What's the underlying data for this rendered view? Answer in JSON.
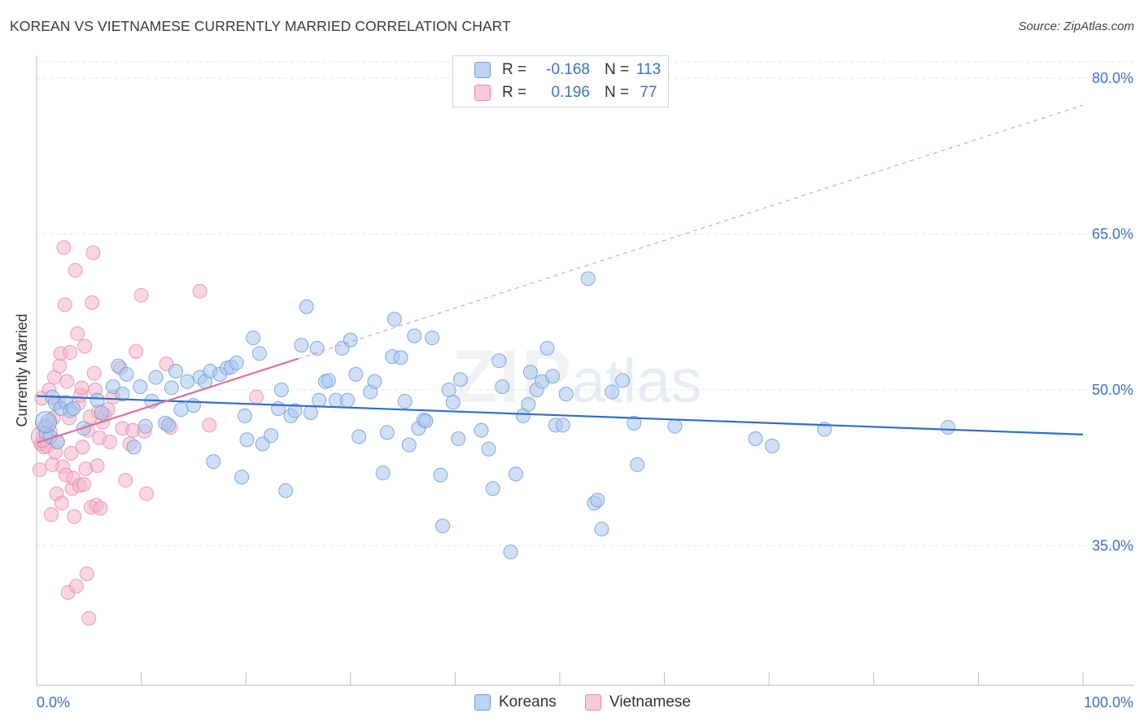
{
  "title": "KOREAN VS VIETNAMESE CURRENTLY MARRIED CORRELATION CHART",
  "source": "Source: ZipAtlas.com",
  "watermark": {
    "zip": "ZIP",
    "atlas": "atlas"
  },
  "legend": {
    "korean": {
      "r_label": "R =",
      "r_value": "-0.168",
      "n_label": "N =",
      "n_value": "113"
    },
    "vietnamese": {
      "r_label": "R =",
      "r_value": "0.196",
      "n_label": "N =",
      "n_value": "77"
    }
  },
  "bottom_legend": {
    "korean": "Koreans",
    "vietnamese": "Vietnamese"
  },
  "colors": {
    "korean_fill": "#a9c6ef",
    "korean_stroke": "#6f9ddb",
    "korean_line": "#2f6fc7",
    "viet_fill": "#f4b5c9",
    "viet_stroke": "#e88aa8",
    "viet_line": "#e0709a",
    "axis_text": "#3b73c4",
    "grid": "#e3e6ea"
  },
  "chart_data": {
    "type": "scatter",
    "title": "KOREAN VS VIETNAMESE CURRENTLY MARRIED CORRELATION CHART",
    "xlabel": "",
    "ylabel": "Currently Married",
    "xlim": [
      0,
      100
    ],
    "ylim": [
      20,
      82
    ],
    "x_tick_labels": [
      "0.0%",
      "100.0%"
    ],
    "y_ticks": [
      35,
      50,
      65,
      80
    ],
    "y_tick_labels": [
      "35.0%",
      "50.0%",
      "65.0%",
      "80.0%"
    ],
    "series": [
      {
        "name": "Koreans",
        "r": -0.168,
        "n": 113,
        "trend": {
          "x": [
            0,
            100
          ],
          "y": [
            49.4,
            45.7
          ],
          "dashed_extension": false
        },
        "points": [
          [
            0.8,
            46.5
          ],
          [
            0.9,
            45.8
          ],
          [
            1.1,
            47.0
          ],
          [
            1.3,
            45.5
          ],
          [
            1.5,
            49.3
          ],
          [
            1.8,
            48.7
          ],
          [
            2.0,
            45.0
          ],
          [
            2.3,
            48.2
          ],
          [
            2.8,
            48.8
          ],
          [
            3.2,
            48.0
          ],
          [
            3.5,
            48.2
          ],
          [
            4.5,
            46.3
          ],
          [
            5.8,
            49.0
          ],
          [
            6.2,
            47.8
          ],
          [
            7.3,
            50.3
          ],
          [
            7.8,
            52.3
          ],
          [
            8.2,
            49.6
          ],
          [
            8.6,
            51.5
          ],
          [
            9.3,
            44.5
          ],
          [
            9.9,
            50.3
          ],
          [
            10.4,
            46.5
          ],
          [
            11.0,
            48.9
          ],
          [
            11.4,
            51.2
          ],
          [
            12.3,
            46.8
          ],
          [
            12.6,
            46.6
          ],
          [
            12.9,
            50.2
          ],
          [
            13.3,
            51.8
          ],
          [
            13.8,
            48.1
          ],
          [
            14.4,
            50.8
          ],
          [
            15.0,
            48.5
          ],
          [
            15.6,
            51.2
          ],
          [
            16.1,
            50.8
          ],
          [
            16.6,
            51.8
          ],
          [
            16.9,
            43.1
          ],
          [
            17.5,
            51.5
          ],
          [
            18.2,
            52.1
          ],
          [
            18.6,
            52.2
          ],
          [
            19.1,
            52.6
          ],
          [
            19.6,
            41.6
          ],
          [
            19.9,
            47.5
          ],
          [
            20.1,
            45.2
          ],
          [
            20.7,
            55.0
          ],
          [
            21.3,
            53.5
          ],
          [
            21.6,
            44.8
          ],
          [
            22.4,
            45.6
          ],
          [
            23.1,
            48.2
          ],
          [
            23.4,
            50.0
          ],
          [
            23.8,
            40.3
          ],
          [
            24.3,
            47.5
          ],
          [
            24.7,
            48.0
          ],
          [
            25.3,
            54.3
          ],
          [
            25.8,
            58.0
          ],
          [
            26.2,
            47.8
          ],
          [
            26.8,
            54.0
          ],
          [
            27.0,
            49.0
          ],
          [
            27.6,
            50.8
          ],
          [
            27.9,
            50.9
          ],
          [
            28.6,
            49.0
          ],
          [
            29.2,
            54.0
          ],
          [
            29.7,
            49.0
          ],
          [
            30.0,
            54.8
          ],
          [
            30.5,
            51.5
          ],
          [
            30.8,
            45.5
          ],
          [
            31.9,
            49.8
          ],
          [
            32.3,
            50.8
          ],
          [
            33.1,
            42.0
          ],
          [
            33.5,
            45.9
          ],
          [
            34.0,
            53.2
          ],
          [
            34.2,
            56.8
          ],
          [
            34.8,
            53.1
          ],
          [
            35.2,
            48.9
          ],
          [
            35.6,
            44.7
          ],
          [
            36.1,
            55.2
          ],
          [
            36.5,
            46.3
          ],
          [
            37.0,
            47.1
          ],
          [
            37.2,
            47.0
          ],
          [
            37.8,
            55.0
          ],
          [
            38.6,
            41.8
          ],
          [
            38.8,
            36.9
          ],
          [
            39.4,
            50.0
          ],
          [
            39.8,
            48.8
          ],
          [
            40.3,
            45.3
          ],
          [
            40.5,
            51.0
          ],
          [
            42.5,
            46.1
          ],
          [
            43.2,
            44.3
          ],
          [
            43.6,
            40.5
          ],
          [
            44.2,
            52.8
          ],
          [
            44.5,
            50.3
          ],
          [
            45.3,
            34.4
          ],
          [
            45.8,
            41.9
          ],
          [
            46.5,
            47.5
          ],
          [
            47.0,
            48.6
          ],
          [
            47.2,
            51.7
          ],
          [
            47.8,
            50.0
          ],
          [
            48.3,
            50.8
          ],
          [
            48.8,
            54.0
          ],
          [
            49.3,
            51.3
          ],
          [
            49.6,
            46.6
          ],
          [
            50.3,
            46.6
          ],
          [
            50.6,
            49.6
          ],
          [
            52.7,
            60.7
          ],
          [
            53.3,
            39.1
          ],
          [
            53.6,
            39.4
          ],
          [
            54.0,
            36.6
          ],
          [
            55.0,
            49.8
          ],
          [
            56.0,
            50.9
          ],
          [
            57.1,
            46.8
          ],
          [
            57.4,
            42.8
          ],
          [
            61.0,
            46.5
          ],
          [
            68.7,
            45.3
          ],
          [
            70.3,
            44.6
          ],
          [
            75.3,
            46.2
          ],
          [
            87.1,
            46.4
          ]
        ]
      },
      {
        "name": "Vietnamese",
        "r": 0.196,
        "n": 77,
        "trend": {
          "x": [
            0,
            25
          ],
          "y": [
            44.9,
            53.0
          ],
          "dashed_extension": {
            "x": [
              25,
              100
            ],
            "y": [
              53.0,
              77.4
            ]
          }
        },
        "points": [
          [
            0.3,
            42.3
          ],
          [
            0.4,
            44.8
          ],
          [
            0.5,
            49.2
          ],
          [
            0.6,
            45.5
          ],
          [
            0.7,
            44.5
          ],
          [
            0.8,
            46.5
          ],
          [
            0.9,
            45.3
          ],
          [
            1.0,
            44.6
          ],
          [
            1.2,
            50.0
          ],
          [
            1.3,
            46.0
          ],
          [
            1.4,
            38.0
          ],
          [
            1.5,
            42.8
          ],
          [
            1.6,
            47.3
          ],
          [
            1.7,
            51.2
          ],
          [
            1.8,
            44.0
          ],
          [
            1.9,
            40.0
          ],
          [
            2.0,
            45.0
          ],
          [
            2.1,
            48.8
          ],
          [
            2.2,
            52.3
          ],
          [
            2.3,
            53.5
          ],
          [
            2.4,
            39.1
          ],
          [
            2.5,
            42.6
          ],
          [
            2.6,
            63.7
          ],
          [
            2.7,
            58.2
          ],
          [
            2.8,
            41.8
          ],
          [
            2.9,
            50.8
          ],
          [
            3.0,
            30.5
          ],
          [
            3.1,
            47.3
          ],
          [
            3.2,
            53.6
          ],
          [
            3.3,
            43.9
          ],
          [
            3.4,
            40.5
          ],
          [
            3.5,
            41.5
          ],
          [
            3.6,
            37.8
          ],
          [
            3.7,
            61.5
          ],
          [
            3.8,
            31.1
          ],
          [
            3.9,
            55.4
          ],
          [
            4.0,
            48.7
          ],
          [
            4.1,
            40.8
          ],
          [
            4.2,
            49.5
          ],
          [
            4.3,
            50.2
          ],
          [
            4.4,
            44.5
          ],
          [
            4.5,
            40.9
          ],
          [
            4.6,
            54.2
          ],
          [
            4.7,
            42.4
          ],
          [
            4.8,
            32.3
          ],
          [
            4.9,
            46.1
          ],
          [
            5.0,
            28.0
          ],
          [
            5.1,
            47.4
          ],
          [
            5.2,
            38.7
          ],
          [
            5.3,
            58.4
          ],
          [
            5.4,
            63.2
          ],
          [
            5.5,
            51.6
          ],
          [
            5.6,
            50.0
          ],
          [
            5.7,
            38.9
          ],
          [
            5.8,
            42.7
          ],
          [
            5.9,
            47.9
          ],
          [
            6.0,
            45.4
          ],
          [
            6.1,
            38.6
          ],
          [
            6.3,
            46.9
          ],
          [
            6.5,
            47.6
          ],
          [
            6.8,
            48.1
          ],
          [
            7.0,
            45.0
          ],
          [
            7.3,
            49.3
          ],
          [
            8.0,
            52.1
          ],
          [
            8.2,
            46.3
          ],
          [
            8.5,
            41.3
          ],
          [
            8.9,
            44.8
          ],
          [
            9.2,
            46.1
          ],
          [
            9.5,
            53.7
          ],
          [
            10.0,
            59.1
          ],
          [
            10.3,
            46.0
          ],
          [
            10.5,
            40.0
          ],
          [
            12.4,
            52.5
          ],
          [
            12.8,
            46.4
          ],
          [
            15.6,
            59.5
          ],
          [
            16.5,
            46.6
          ],
          [
            21.0,
            49.3
          ]
        ]
      }
    ]
  }
}
